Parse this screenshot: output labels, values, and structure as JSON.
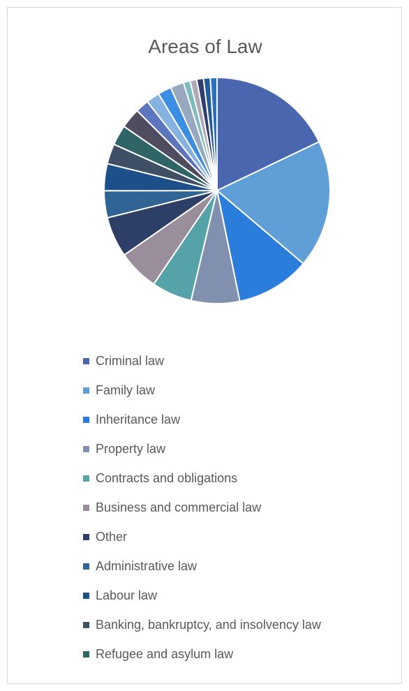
{
  "chart_data": {
    "type": "pie",
    "title": "Areas of Law",
    "categories": [
      "Criminal law",
      "Family law",
      "Inheritance law",
      "Property law",
      "Contracts and obligations",
      "Business and commercial law",
      "Other",
      "Administrative law",
      "Labour law",
      "Banking, bankruptcy, and insolvency law",
      "Refugee and asylum law",
      "",
      "",
      "",
      "",
      "",
      "",
      "",
      "",
      "",
      ""
    ],
    "values": [
      18.6,
      19.0,
      11.0,
      7.2,
      6.0,
      6.1,
      6.0,
      4.0,
      4.0,
      3.0,
      3.0,
      3.0,
      2.0,
      2.0,
      2.0,
      2.0,
      1.0,
      1.0,
      1.0,
      1.0,
      1.0
    ],
    "colors": [
      "#4a66ae",
      "#5f9ed6",
      "#2a7ddb",
      "#8090ae",
      "#55a2a8",
      "#9a8e9c",
      "#2d3f66",
      "#2f6494",
      "#1d4f8a",
      "#3e4f66",
      "#2f6567",
      "#4f4c5f",
      "#5b76bf",
      "#86b2e0",
      "#3c8ee5",
      "#98a8bf",
      "#7cbcbf",
      "#b0a8b6",
      "#2e3d6e",
      "#235b9a",
      "#2a6fc2"
    ],
    "legend_position": "bottom",
    "legend_count": 11
  }
}
